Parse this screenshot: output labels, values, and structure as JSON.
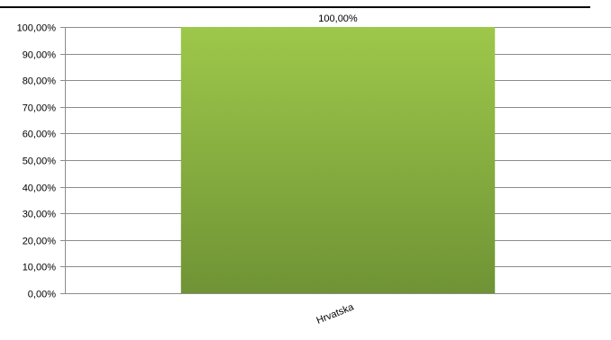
{
  "chart_data": {
    "type": "bar",
    "categories": [
      "Hrvatska"
    ],
    "values": [
      100
    ],
    "value_labels": [
      "100,00%"
    ],
    "ylim": [
      0,
      100
    ],
    "y_ticks": [
      0,
      10,
      20,
      30,
      40,
      50,
      60,
      70,
      80,
      90,
      100
    ],
    "y_tick_labels": [
      "0,00%",
      "10,00%",
      "20,00%",
      "30,00%",
      "40,00%",
      "50,00%",
      "60,00%",
      "70,00%",
      "80,00%",
      "90,00%",
      "100,00%"
    ],
    "grid": true,
    "legend": "none",
    "bar_color_top": "#9dc84a",
    "bar_color_bottom": "#6f9335"
  }
}
